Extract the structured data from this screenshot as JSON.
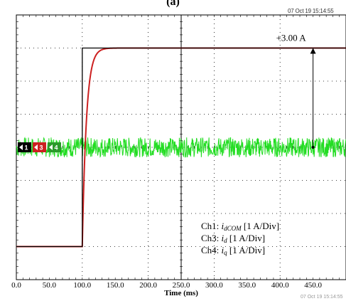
{
  "header": {
    "figure_label": "(a)",
    "timestamp": "07 Oct 19  15:14:55",
    "footer_stamp": "07 Oct 19 15:14:55"
  },
  "chart_data": {
    "type": "line",
    "title": "",
    "xlabel": "Time (ms)",
    "ylabel": "",
    "xlim": [
      0,
      500
    ],
    "x_ticks": [
      0,
      50,
      100,
      150,
      200,
      250,
      300,
      350,
      400,
      450
    ],
    "x_tick_labels": [
      "0.0",
      "50.0",
      "100.0",
      "150.0",
      "200.0",
      "250.0",
      "300.0",
      "350.0",
      "400.0",
      "450.0"
    ],
    "y_unit": "div",
    "y_divisions": 8,
    "grid": true,
    "channel_markers": [
      {
        "label": "1",
        "color": "#000000"
      },
      {
        "label": "3",
        "color": "#cc2020"
      },
      {
        "label": "4",
        "color": "#2a9a2a"
      }
    ],
    "series": [
      {
        "name": "Ch1",
        "color": "#000000",
        "baseline_div": -3.0,
        "step_time_ms": 100,
        "final_div": 3.0
      },
      {
        "name": "Ch3",
        "color": "#cc2020",
        "baseline_div": -3.0,
        "step_time_ms": 100,
        "final_div": 3.0,
        "rise_time_ms": 25
      },
      {
        "name": "Ch4",
        "color": "#22dd22",
        "level_div": 0.0,
        "noise_div": 0.3
      }
    ],
    "annotation": {
      "text": "+3.00 A",
      "x_ms": 450,
      "from_div": 0.0,
      "to_div": 3.0
    },
    "legend": {
      "placement": "bottom-right",
      "entries": [
        {
          "prefix": "Ch1: ",
          "var": "i",
          "sub": "dCOM",
          "suffix": " [1 A/Div]"
        },
        {
          "prefix": "Ch3: ",
          "var": "i",
          "sub": "d",
          "suffix": " [1 A/Div]"
        },
        {
          "prefix": "Ch4: ",
          "var": "i",
          "sub": "q",
          "suffix": " [1 A/Div]"
        }
      ]
    }
  }
}
